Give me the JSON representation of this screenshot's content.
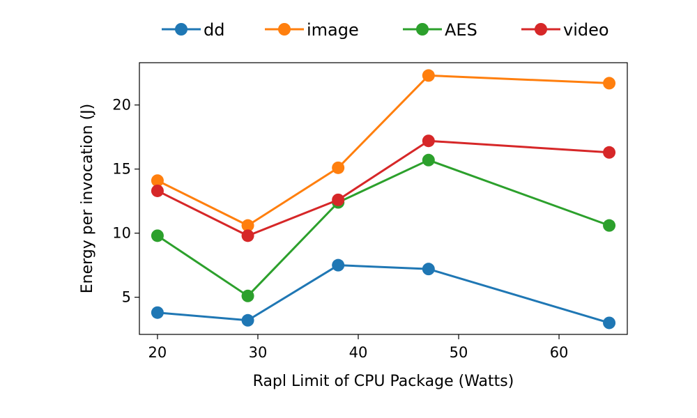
{
  "chart_data": {
    "type": "line",
    "title": "",
    "xlabel": "Rapl Limit of CPU Package (Watts)",
    "ylabel": "Energy per invocation (J)",
    "x": [
      20,
      29,
      38,
      47,
      65
    ],
    "xlim": [
      18.2,
      66.8
    ],
    "ylim": [
      2.1,
      23.3
    ],
    "xticks": [
      20,
      30,
      40,
      50,
      60
    ],
    "yticks": [
      5,
      10,
      15,
      20
    ],
    "grid": false,
    "legend_position": "top-center",
    "series": [
      {
        "name": "dd",
        "color": "#1f77b4",
        "values": [
          3.8,
          3.2,
          7.5,
          7.2,
          3.0
        ]
      },
      {
        "name": "image",
        "color": "#ff7f0e",
        "values": [
          14.1,
          10.6,
          15.1,
          22.3,
          21.7
        ]
      },
      {
        "name": "AES",
        "color": "#2ca02c",
        "values": [
          9.8,
          5.1,
          12.4,
          15.7,
          10.6
        ]
      },
      {
        "name": "video",
        "color": "#d62728",
        "values": [
          13.3,
          9.8,
          12.6,
          17.2,
          16.3
        ]
      }
    ]
  }
}
